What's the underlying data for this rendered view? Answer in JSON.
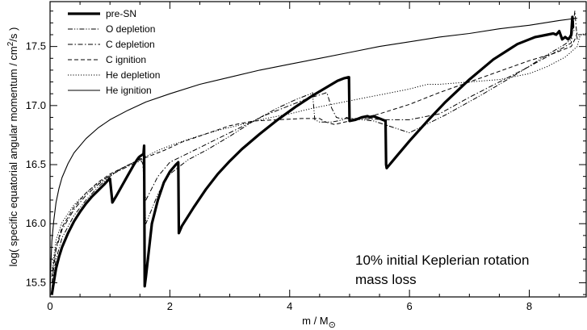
{
  "chart_data": {
    "type": "line",
    "title": "",
    "xlabel": "m / M",
    "xlabel_sub": "⊙",
    "ylabel_prefix": "log( specific equatorial angular momentum / cm",
    "ylabel_sup": "2",
    "ylabel_suffix": "/s )",
    "xlim": [
      0,
      8.95
    ],
    "ylim": [
      15.38,
      17.88
    ],
    "xticks": [
      0,
      2,
      4,
      6,
      8
    ],
    "xtick_labels": [
      "0",
      "2",
      "4",
      "6",
      "8"
    ],
    "yticks": [
      15.5,
      16.0,
      16.5,
      17.0,
      17.5
    ],
    "ytick_labels": [
      "15.5",
      "16.0",
      "16.5",
      "17.0",
      "17.5"
    ],
    "grid": false,
    "legend_position": "top-left",
    "annotation": [
      "10% initial Keplerian rotation",
      "mass loss"
    ],
    "series": [
      {
        "name": "pre-SN",
        "style": "solid-thick",
        "x": [
          0.03,
          0.06,
          0.1,
          0.15,
          0.2,
          0.3,
          0.4,
          0.5,
          0.6,
          0.7,
          0.8,
          0.9,
          0.99,
          1.0,
          1.04,
          1.1,
          1.2,
          1.3,
          1.4,
          1.45,
          1.48,
          1.5,
          1.53,
          1.56,
          1.57,
          1.58,
          1.6,
          1.7,
          1.8,
          1.9,
          2.0,
          2.1,
          2.14,
          2.15,
          2.2,
          2.4,
          2.6,
          2.8,
          3.0,
          3.2,
          3.5,
          3.8,
          4.1,
          4.4,
          4.7,
          4.8,
          4.9,
          4.98,
          4.99,
          5.0,
          5.1,
          5.2,
          5.3,
          5.35,
          5.4,
          5.45,
          5.5,
          5.6,
          5.61,
          5.62,
          5.8,
          6.0,
          6.3,
          6.6,
          7.0,
          7.4,
          7.8,
          8.0,
          8.1,
          8.2,
          8.3,
          8.4,
          8.45,
          8.5,
          8.55,
          8.6,
          8.65,
          8.68,
          8.7,
          8.72,
          8.73
        ],
        "y": [
          15.4,
          15.5,
          15.62,
          15.72,
          15.8,
          15.92,
          16.02,
          16.1,
          16.17,
          16.23,
          16.28,
          16.33,
          16.38,
          16.38,
          16.18,
          16.23,
          16.32,
          16.41,
          16.5,
          16.54,
          16.56,
          16.57,
          16.58,
          16.59,
          16.66,
          15.47,
          15.55,
          16.0,
          16.2,
          16.35,
          16.44,
          16.5,
          16.52,
          15.92,
          15.98,
          16.14,
          16.29,
          16.42,
          16.53,
          16.63,
          16.76,
          16.88,
          16.99,
          17.09,
          17.18,
          17.21,
          17.23,
          17.24,
          17.24,
          16.87,
          16.88,
          16.9,
          16.91,
          16.9,
          16.91,
          16.9,
          16.89,
          16.87,
          16.5,
          16.47,
          16.58,
          16.7,
          16.87,
          17.03,
          17.22,
          17.39,
          17.52,
          17.56,
          17.58,
          17.59,
          17.6,
          17.61,
          17.6,
          17.63,
          17.56,
          17.58,
          17.56,
          17.58,
          17.6,
          17.75,
          17.66
        ]
      },
      {
        "name": "O depletion",
        "style": "dash-dot-dot",
        "x": [
          0.03,
          0.1,
          0.2,
          0.4,
          0.6,
          0.8,
          1.0,
          1.2,
          1.4,
          1.5,
          1.55,
          1.57,
          1.6,
          1.8,
          2.0,
          2.3,
          2.6,
          3.0,
          3.4,
          3.8,
          4.1,
          4.35,
          4.38,
          4.42,
          4.5,
          4.6,
          4.7,
          4.8,
          4.9,
          4.95,
          5.0,
          5.4,
          6.0,
          6.6,
          7.2,
          7.8,
          8.3,
          8.6,
          8.7,
          8.72,
          8.75
        ],
        "y": [
          15.45,
          15.7,
          15.88,
          16.07,
          16.2,
          16.31,
          16.4,
          16.47,
          16.52,
          16.55,
          16.55,
          16.25,
          16.0,
          16.25,
          16.42,
          16.54,
          16.62,
          16.74,
          16.87,
          16.98,
          17.05,
          17.1,
          17.11,
          16.88,
          16.86,
          16.86,
          16.86,
          16.87,
          16.88,
          16.9,
          16.89,
          16.87,
          16.77,
          16.92,
          17.09,
          17.27,
          17.43,
          17.52,
          17.56,
          17.74,
          17.62
        ]
      },
      {
        "name": "C depletion",
        "style": "dash-dot",
        "x": [
          0.03,
          0.1,
          0.2,
          0.4,
          0.6,
          0.8,
          1.0,
          1.2,
          1.4,
          1.5,
          1.53,
          1.55,
          1.57,
          1.6,
          1.8,
          2.0,
          2.4,
          2.8,
          3.2,
          3.6,
          4.0,
          4.3,
          4.5,
          4.62,
          4.7,
          4.78,
          4.85,
          4.95,
          5.2,
          5.6,
          6.0,
          6.5,
          7.0,
          7.5,
          8.0,
          8.5,
          8.7,
          8.76,
          8.8
        ],
        "y": [
          15.5,
          15.78,
          15.95,
          16.12,
          16.24,
          16.33,
          16.41,
          16.46,
          16.51,
          16.53,
          16.53,
          16.5,
          16.3,
          16.2,
          16.4,
          16.52,
          16.62,
          16.72,
          16.82,
          16.92,
          17.0,
          17.06,
          17.09,
          17.11,
          16.98,
          16.9,
          16.89,
          16.89,
          16.89,
          16.88,
          16.88,
          16.93,
          17.07,
          17.2,
          17.33,
          17.47,
          17.53,
          17.8,
          17.56
        ]
      },
      {
        "name": "C ignition",
        "style": "dashed",
        "x": [
          0.03,
          0.1,
          0.2,
          0.4,
          0.6,
          0.8,
          1.0,
          1.2,
          1.4,
          1.55,
          1.6,
          1.7,
          1.9,
          2.2,
          2.6,
          3.0,
          3.4,
          3.8,
          4.2,
          4.5,
          4.6,
          4.75,
          5.0,
          5.5,
          6.0,
          6.5,
          7.0,
          7.5,
          8.0,
          8.4,
          8.7,
          8.78,
          8.8,
          8.82,
          8.95
        ],
        "y": [
          15.55,
          15.8,
          15.97,
          16.14,
          16.26,
          16.35,
          16.42,
          16.47,
          16.52,
          16.55,
          16.56,
          16.58,
          16.62,
          16.69,
          16.76,
          16.83,
          16.87,
          16.88,
          16.89,
          16.89,
          16.86,
          16.84,
          16.87,
          16.93,
          17.01,
          17.11,
          17.2,
          17.29,
          17.38,
          17.44,
          17.5,
          17.58,
          17.62,
          17.6,
          17.6
        ]
      },
      {
        "name": "He depletion",
        "style": "dotted",
        "x": [
          0.03,
          0.1,
          0.2,
          0.4,
          0.6,
          0.8,
          1.0,
          1.2,
          1.4,
          1.6,
          1.8,
          2.0,
          2.4,
          2.8,
          3.2,
          3.6,
          4.0,
          4.4,
          4.8,
          5.2,
          5.6,
          6.0,
          6.3,
          6.5,
          7.0,
          7.5,
          7.7,
          8.0,
          8.3,
          8.6,
          8.8,
          8.85,
          8.95
        ],
        "y": [
          15.6,
          15.86,
          16.01,
          16.16,
          16.26,
          16.34,
          16.41,
          16.47,
          16.52,
          16.57,
          16.62,
          16.66,
          16.73,
          16.79,
          16.84,
          16.89,
          16.93,
          16.98,
          17.02,
          17.06,
          17.1,
          17.14,
          17.18,
          17.18,
          17.2,
          17.22,
          17.24,
          17.27,
          17.33,
          17.41,
          17.5,
          17.6,
          17.61
        ]
      },
      {
        "name": "He ignition",
        "style": "solid-thin",
        "x": [
          0.0,
          0.01,
          0.03,
          0.06,
          0.1,
          0.15,
          0.2,
          0.3,
          0.4,
          0.6,
          0.8,
          1.0,
          1.3,
          1.6,
          2.0,
          2.5,
          3.0,
          3.5,
          4.0,
          4.5,
          5.0,
          5.5,
          6.0,
          6.5,
          7.0,
          7.5,
          8.0,
          8.5,
          8.8
        ],
        "y": [
          15.38,
          15.6,
          15.85,
          16.02,
          16.18,
          16.3,
          16.39,
          16.51,
          16.6,
          16.72,
          16.81,
          16.88,
          16.96,
          17.03,
          17.1,
          17.18,
          17.24,
          17.3,
          17.35,
          17.4,
          17.45,
          17.5,
          17.54,
          17.58,
          17.61,
          17.65,
          17.68,
          17.72,
          17.74
        ]
      }
    ]
  }
}
